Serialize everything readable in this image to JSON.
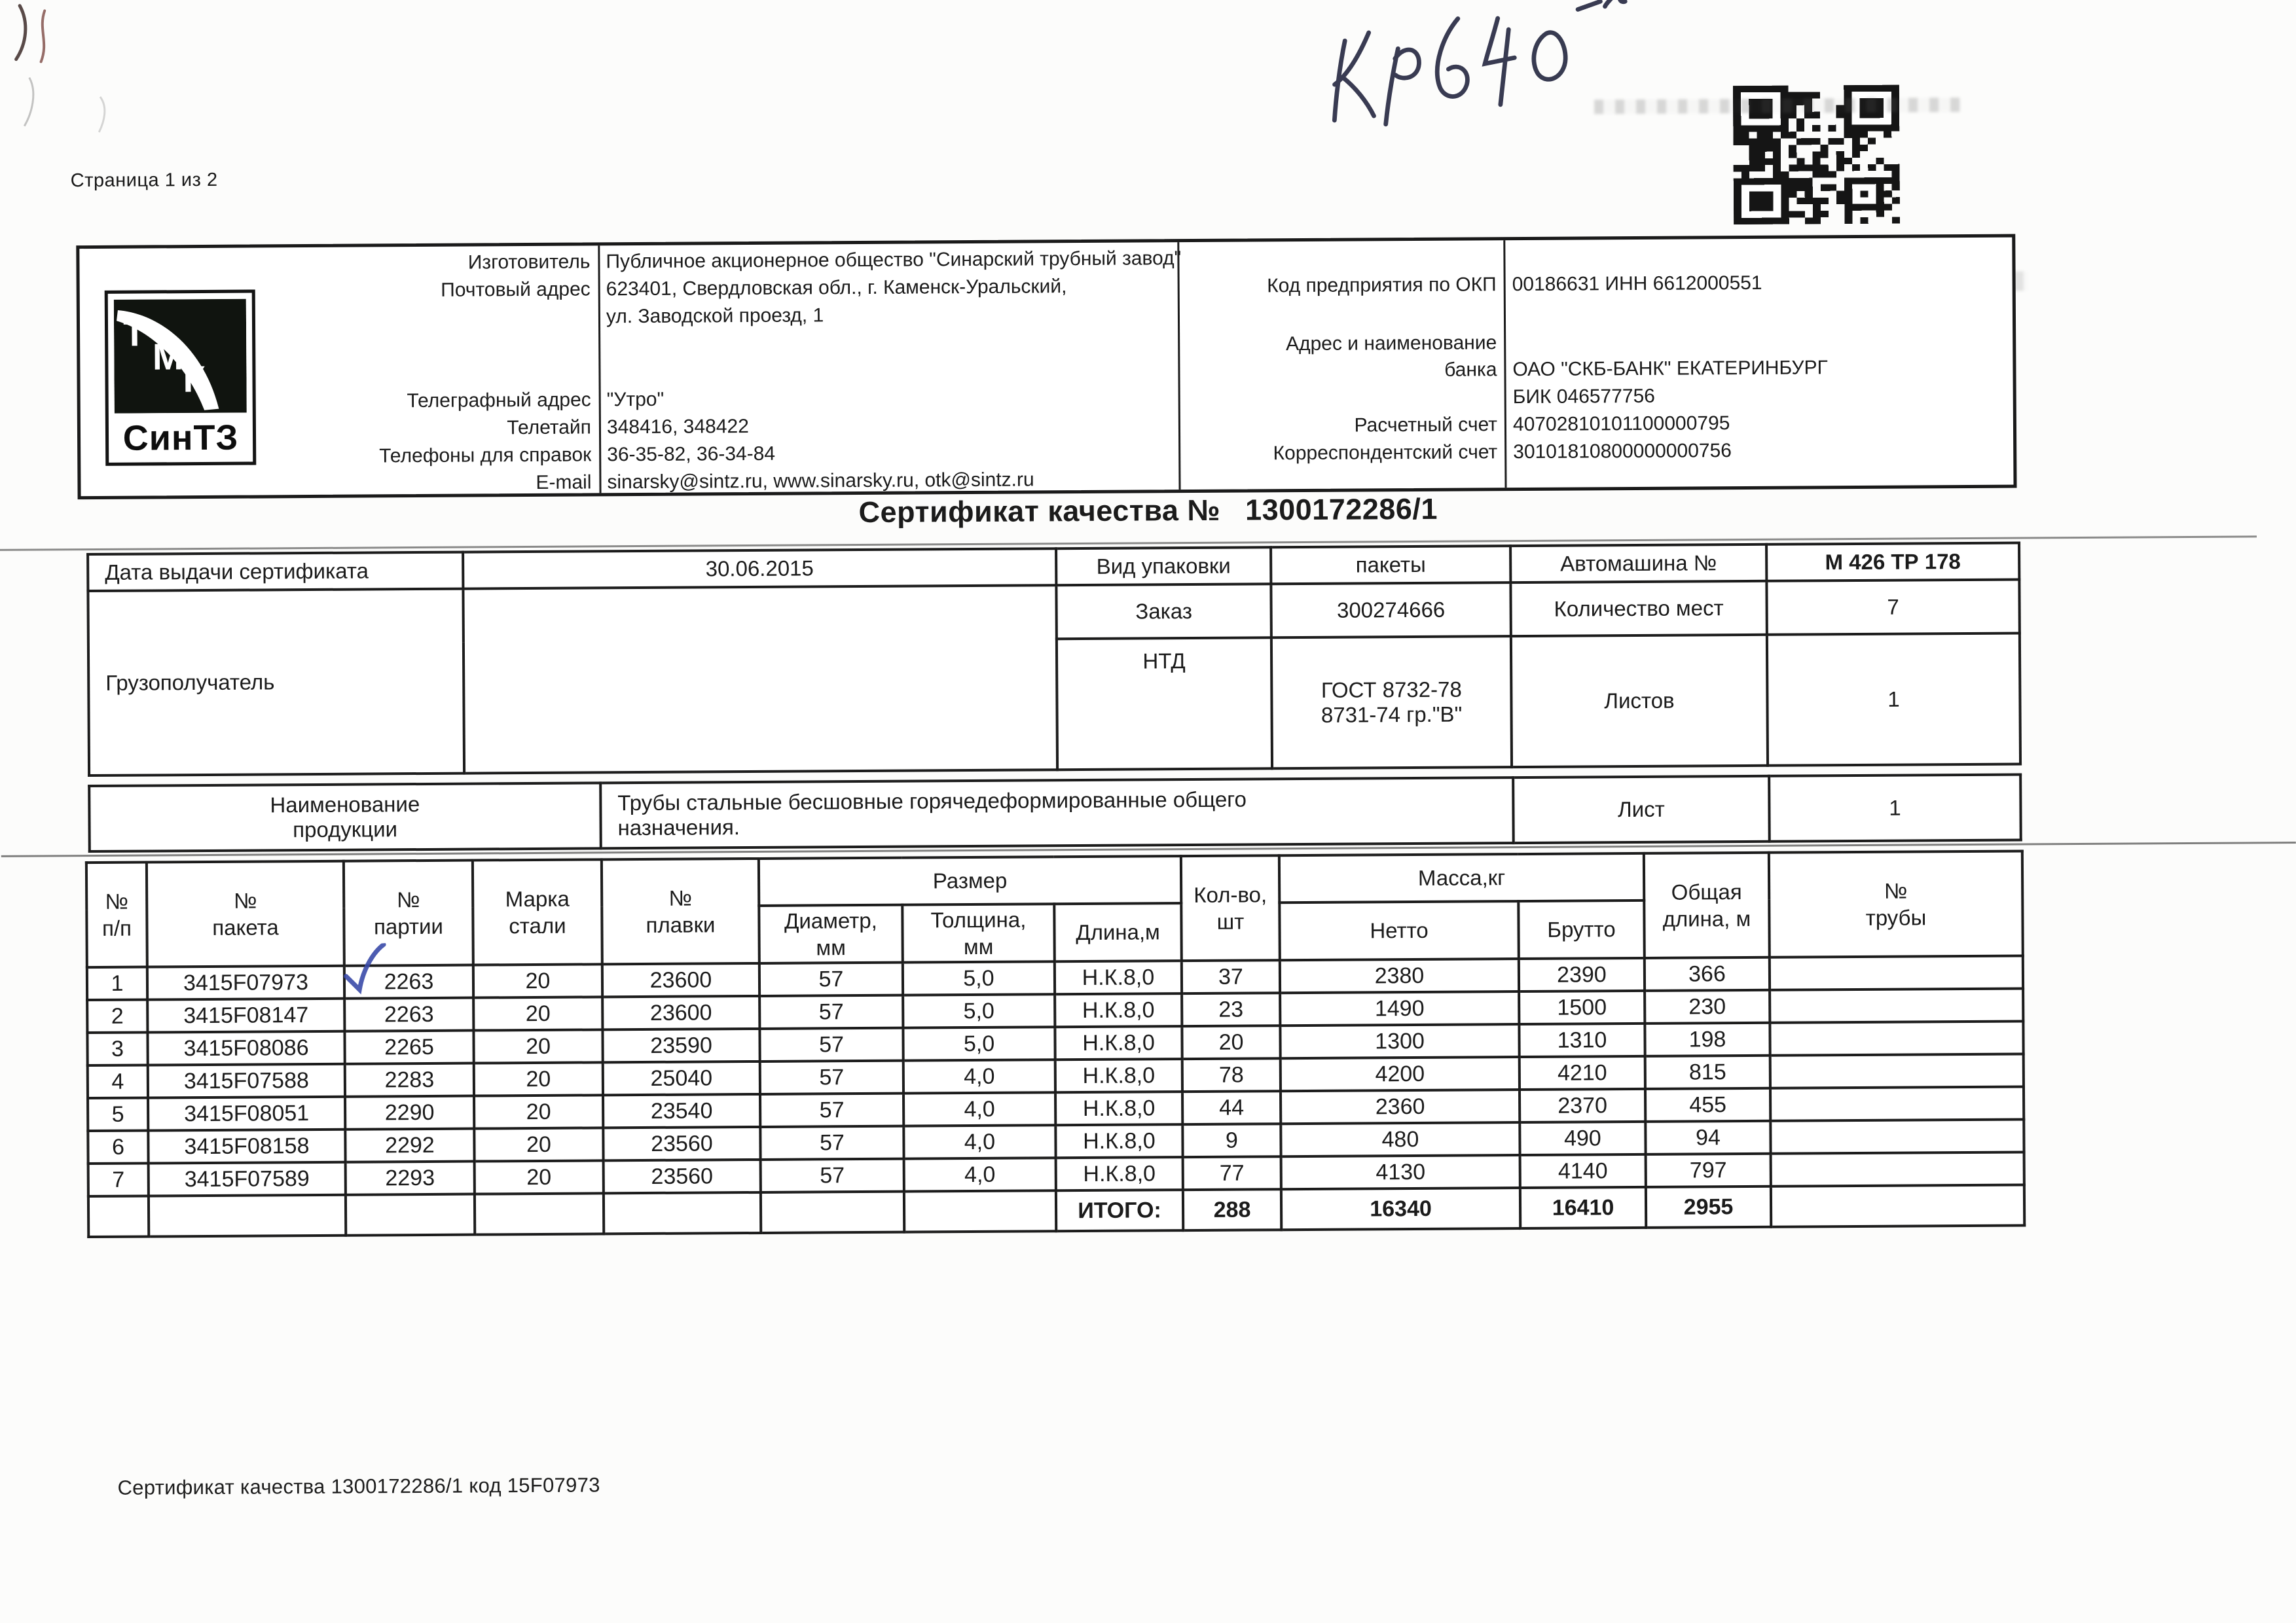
{
  "page": {
    "label": "Страница 1 из 2",
    "footer": "Сертификат качества 1300172286/1 код 15F07973",
    "handwriting_note": "Кр 640",
    "check_mark": "✓"
  },
  "header": {
    "logo": {
      "letter_t": "Т",
      "letter_m": "М",
      "letter_k": "К",
      "plant": "СинТЗ"
    },
    "left": {
      "rows": [
        {
          "label": "Изготовитель",
          "value": "Публичное акционерное общество \"Синарский трубный завод\""
        },
        {
          "label": "Почтовый адрес",
          "value": "623401, Свердловская обл., г. Каменск-Уральский,"
        },
        {
          "label": "",
          "value": "ул. Заводской проезд, 1"
        },
        {
          "label": "Телеграфный адрес",
          "value": "\"Утро\""
        },
        {
          "label": "Телетайп",
          "value": "348416, 348422"
        },
        {
          "label": "Телефоны для справок",
          "value": "36-35-82, 36-34-84"
        },
        {
          "label": "E-mail",
          "value": "sinarsky@sintz.ru, www.sinarsky.ru, otk@sintz.ru"
        }
      ]
    },
    "right": {
      "okp_label": "Код предприятия по ОКП",
      "okp_value": "00186631 ИНН 6612000551",
      "bank_label_line1": "Адрес и наименование",
      "bank_label_line2": "банка",
      "bank_value": "ОАО \"СКБ-БАНК\" ЕКАТЕРИНБУРГ",
      "bik_value": "БИК 046577756",
      "settlement_label": "Расчетный счет",
      "settlement_value": "40702810101100000795",
      "corr_label": "Корреспондентский счет",
      "corr_value": "30101810800000000756"
    }
  },
  "title": {
    "label": "Сертификат качества №",
    "number": "1300172286/1"
  },
  "meta": {
    "date_label": "Дата выдачи сертификата",
    "date_value": "30.06.2015",
    "packing_label": "Вид упаковки",
    "packing_value": "пакеты",
    "truck_label": "Автомашина №",
    "truck_value": "М 426 ТР 178",
    "consignee_label": "Грузополучатель",
    "consignee_value": "",
    "order_label": "Заказ",
    "order_value": "300274666",
    "places_label": "Количество мест",
    "places_value": "7",
    "ntd_label": "НТД",
    "ntd_value": "ГОСТ  8732-78\n8731-74  гр.\"В\"",
    "sheets_label": "Листов",
    "sheets_value": "1",
    "product_label": "Наименование\nпродукции",
    "product_value": "Трубы стальные бесшовные  горячедеформированные общего\nназначения.",
    "sheet_label": "Лист",
    "sheet_value": "1"
  },
  "main_table": {
    "headers": {
      "num": "№\nп/п",
      "packet": "№\nпакета",
      "batch": "№\nпартии",
      "steel": "Марка\nстали",
      "melt": "№\nплавки",
      "size": "Размер",
      "diameter": "Диаметр,\nмм",
      "thickness": "Толщина,\nмм",
      "length": "Длина,м",
      "qty": "Кол-во,\nшт",
      "mass": "Масса,кг",
      "net": "Нетто",
      "gross": "Брутто",
      "total_length": "Общая\nдлина, м",
      "pipe_no": "№\nтрубы"
    },
    "rows": [
      [
        "1",
        "3415F07973",
        "2263",
        "20",
        "23600",
        "57",
        "5,0",
        "Н.К.8,0",
        "37",
        "2380",
        "2390",
        "366",
        ""
      ],
      [
        "2",
        "3415F08147",
        "2263",
        "20",
        "23600",
        "57",
        "5,0",
        "Н.К.8,0",
        "23",
        "1490",
        "1500",
        "230",
        ""
      ],
      [
        "3",
        "3415F08086",
        "2265",
        "20",
        "23590",
        "57",
        "5,0",
        "Н.К.8,0",
        "20",
        "1300",
        "1310",
        "198",
        ""
      ],
      [
        "4",
        "3415F07588",
        "2283",
        "20",
        "25040",
        "57",
        "4,0",
        "Н.К.8,0",
        "78",
        "4200",
        "4210",
        "815",
        ""
      ],
      [
        "5",
        "3415F08051",
        "2290",
        "20",
        "23540",
        "57",
        "4,0",
        "Н.К.8,0",
        "44",
        "2360",
        "2370",
        "455",
        ""
      ],
      [
        "6",
        "3415F08158",
        "2292",
        "20",
        "23560",
        "57",
        "4,0",
        "Н.К.8,0",
        "9",
        "480",
        "490",
        "94",
        ""
      ],
      [
        "7",
        "3415F07589",
        "2293",
        "20",
        "23560",
        "57",
        "4,0",
        "Н.К.8,0",
        "77",
        "4130",
        "4140",
        "797",
        ""
      ]
    ],
    "total": {
      "label": "ИТОГО:",
      "qty": "288",
      "net": "16340",
      "gross": "16410",
      "length": "2955"
    }
  }
}
